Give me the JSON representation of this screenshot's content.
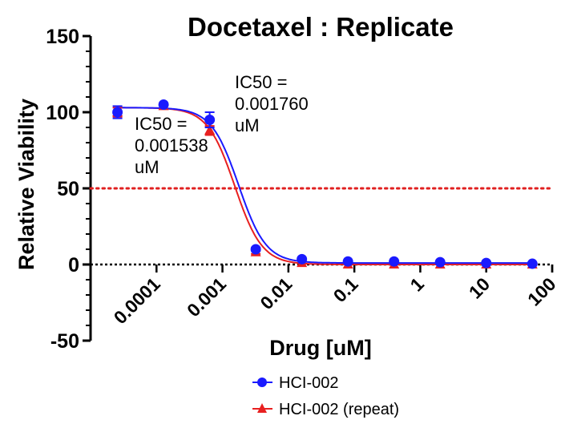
{
  "chart_data": {
    "type": "scatter",
    "title": "Docetaxel : Replicate",
    "xlabel": "Drug [uM]",
    "ylabel": "Relative Viability",
    "xscale": "log",
    "xlim": [
      1e-05,
      100
    ],
    "ylim": [
      -50,
      150
    ],
    "xticks": [
      {
        "value": 0.0001,
        "label": "0.0001"
      },
      {
        "value": 0.001,
        "label": "0.001"
      },
      {
        "value": 0.01,
        "label": "0.01"
      },
      {
        "value": 0.1,
        "label": "0.1"
      },
      {
        "value": 1,
        "label": "1"
      },
      {
        "value": 10,
        "label": "10"
      },
      {
        "value": 100,
        "label": "100"
      }
    ],
    "yticks": [
      {
        "value": -50,
        "label": "-50"
      },
      {
        "value": 0,
        "label": "0"
      },
      {
        "value": 50,
        "label": "50"
      },
      {
        "value": 100,
        "label": "100"
      },
      {
        "value": 150,
        "label": "150"
      }
    ],
    "reference_line": {
      "y": 50,
      "style": "dotted",
      "color": "#e02020"
    },
    "x": [
      2.56e-05,
      0.000128,
      0.00064,
      0.0032,
      0.016,
      0.08,
      0.4,
      2,
      10,
      50
    ],
    "series": [
      {
        "name": "HCI-002",
        "marker": "circle",
        "color": "#1a1aff",
        "values": [
          100,
          105,
          95,
          10,
          3.5,
          2,
          2,
          1.5,
          1,
          0.5
        ],
        "errors": [
          4,
          0,
          5,
          1,
          0,
          0,
          0,
          0,
          0,
          0
        ],
        "fit": {
          "top": 103,
          "bottom": 1,
          "ic50": 0.00176,
          "hill": 2.1
        }
      },
      {
        "name": "HCI-002 (repeat)",
        "marker": "triangle",
        "color": "#e82020",
        "values": [
          100,
          104,
          88,
          8,
          1,
          0,
          0,
          0,
          0,
          0
        ],
        "errors": [
          3,
          0,
          3,
          1,
          0,
          0,
          0,
          0,
          0,
          0
        ],
        "fit": {
          "top": 103,
          "bottom": 0,
          "ic50": 0.001538,
          "hill": 2.1
        }
      }
    ],
    "annotations": [
      {
        "series": "HCI-002 (repeat)",
        "lines": [
          "IC50 =",
          "0.001538",
          "uM"
        ]
      },
      {
        "series": "HCI-002",
        "lines": [
          "IC50 =",
          "0.001760",
          "uM"
        ]
      }
    ],
    "legend": {
      "placement": "bottom-center",
      "entries": [
        "HCI-002",
        "HCI-002 (repeat)"
      ]
    }
  }
}
